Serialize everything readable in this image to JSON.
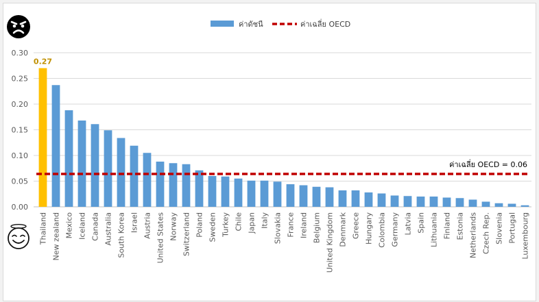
{
  "chart_data": {
    "type": "bar",
    "categories": [
      "Thailand",
      "New zealand",
      "Mexico",
      "Iceland",
      "Canada",
      "Australia",
      "South Korea",
      "Israel",
      "Austria",
      "United States",
      "Norway",
      "Switzerland",
      "Poland",
      "Sweden",
      "Turkey",
      "Chile",
      "Japan",
      "Italy",
      "Slovakia",
      "France",
      "Ireland",
      "Belgium",
      "United Kingdom",
      "Denmark",
      "Greece",
      "Hungary",
      "Colombia",
      "Germany",
      "Latvia",
      "Spain",
      "Lithuania",
      "Finland",
      "Estonia",
      "Netherlands",
      "Czech Rep.",
      "Slovenia",
      "Portugal",
      "Luxembourg"
    ],
    "series": [
      {
        "name": "ค่าดัชนี",
        "values": [
          0.27,
          0.237,
          0.188,
          0.168,
          0.161,
          0.149,
          0.134,
          0.119,
          0.105,
          0.088,
          0.085,
          0.083,
          0.071,
          0.06,
          0.059,
          0.055,
          0.051,
          0.051,
          0.049,
          0.044,
          0.042,
          0.039,
          0.038,
          0.032,
          0.032,
          0.028,
          0.026,
          0.022,
          0.021,
          0.02,
          0.02,
          0.018,
          0.017,
          0.014,
          0.01,
          0.007,
          0.006,
          0.003
        ]
      }
    ],
    "reference_line": {
      "name": "ค่าเฉลี่ย OECD",
      "value": 0.064,
      "label": "ค่าเฉลี่ย OECD = 0.06"
    },
    "highlight": {
      "category": "Thailand",
      "label": "0.27"
    },
    "yticks": [
      "0.00",
      "0.05",
      "0.10",
      "0.15",
      "0.20",
      "0.25",
      "0.30"
    ],
    "ylim": [
      0,
      0.3
    ],
    "grid": true,
    "legend_position": "top",
    "colors": {
      "bar": "#5b9bd5",
      "highlight": "#ffc000",
      "highlight_label": "#c09000",
      "reference": "#c00000",
      "grid": "#d9d9d9",
      "tick_text": "#595959"
    }
  },
  "icons": {
    "top": "angry-face-icon",
    "bottom": "smiling-face-icon"
  }
}
